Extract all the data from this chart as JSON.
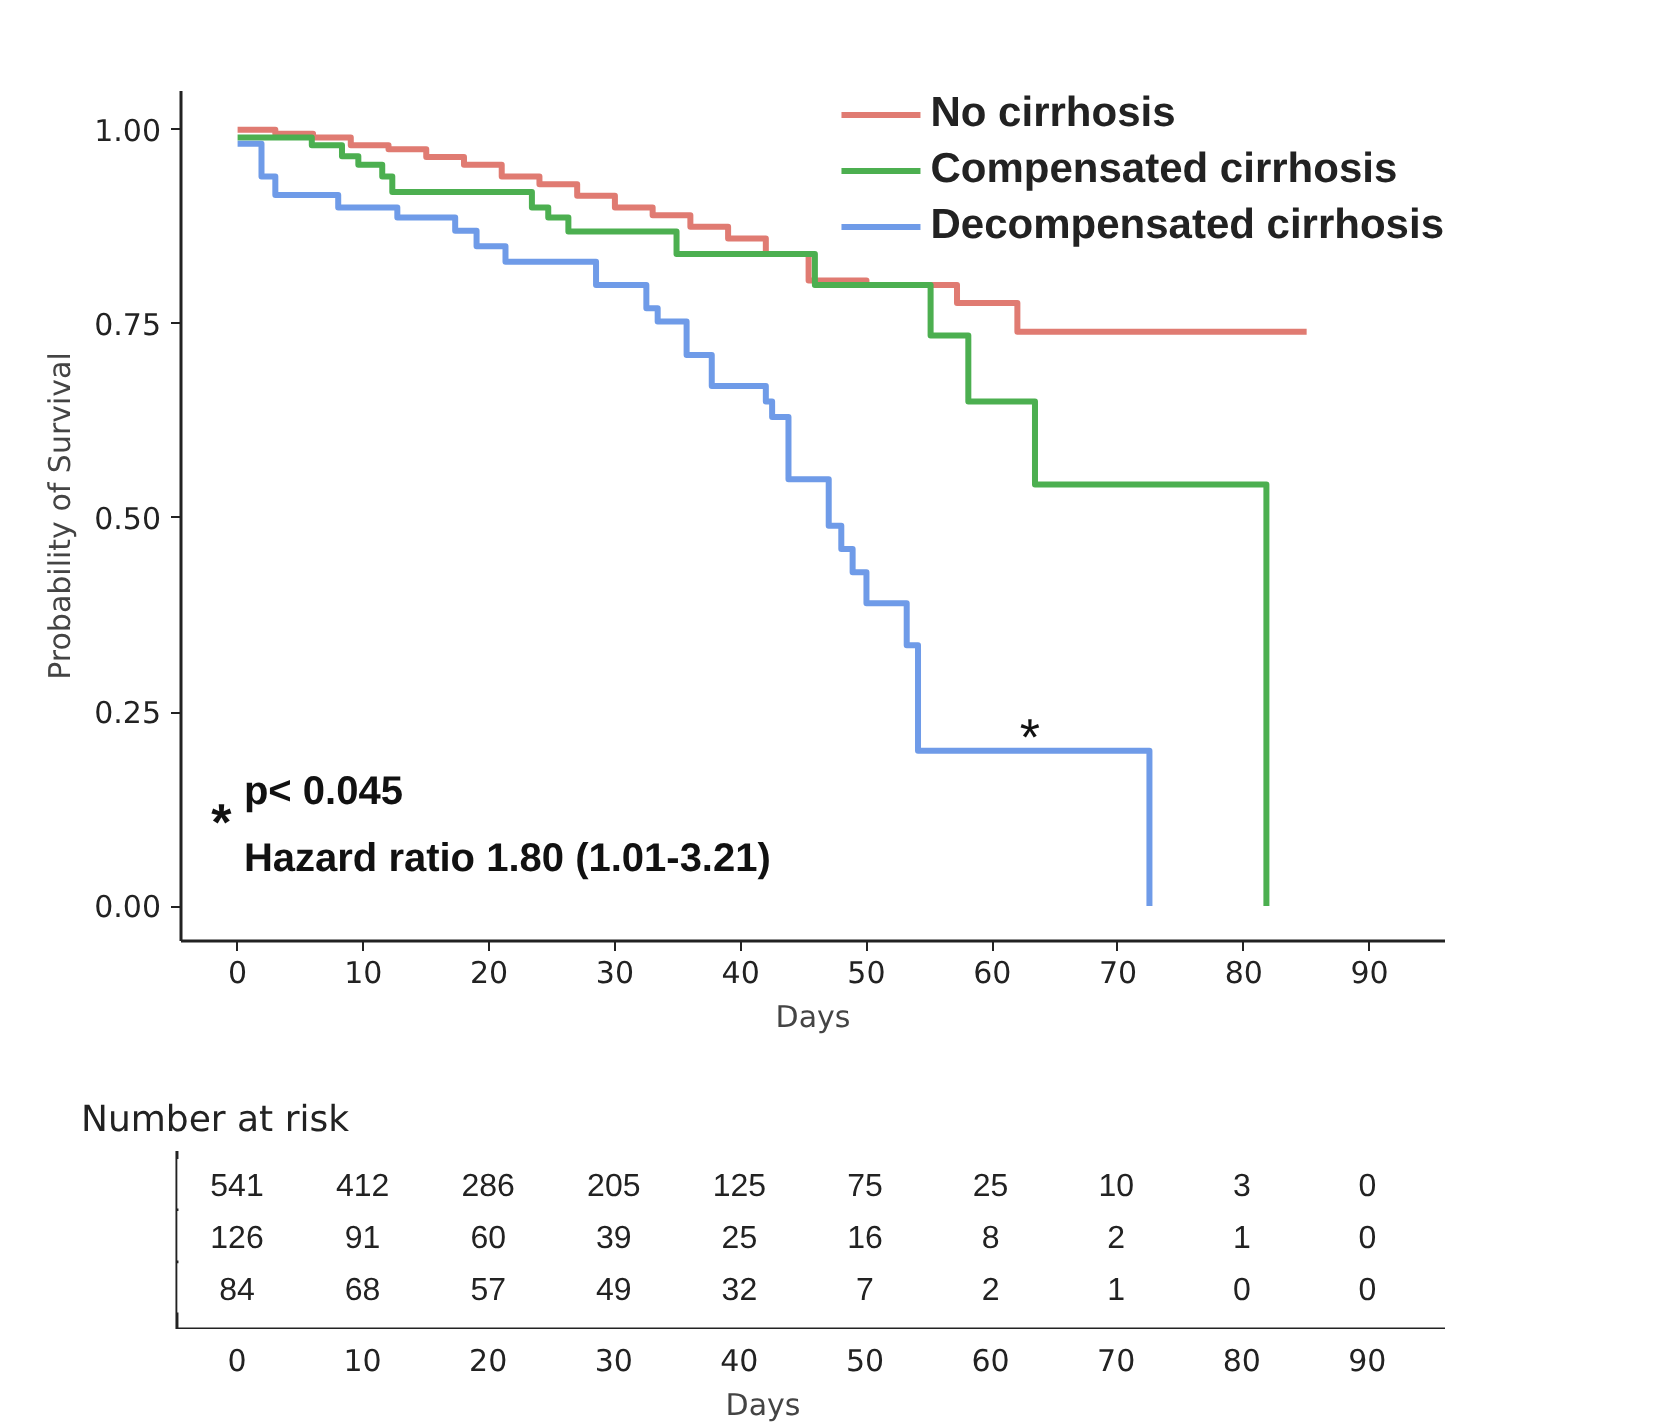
{
  "chart_data": [
    {
      "type": "step",
      "xlabel": "Days",
      "ylabel": "Probability of Survival",
      "xlim": [
        -4.5,
        96
      ],
      "ylim": [
        -0.045,
        1.05
      ],
      "xticks": [
        0,
        10,
        20,
        30,
        40,
        50,
        60,
        70,
        80,
        90
      ],
      "yticks": [
        {
          "value": 0,
          "label": "0.00"
        },
        {
          "value": 0.25,
          "label": "0.25"
        },
        {
          "value": 0.5,
          "label": "0.50"
        },
        {
          "value": 0.75,
          "label": "0.75"
        },
        {
          "value": 1,
          "label": "1.00"
        }
      ],
      "legend": "top right",
      "series": [
        {
          "name": "No cirrhosis",
          "color": "#e07b72",
          "x": [
            0,
            3,
            6,
            9,
            12,
            15,
            18,
            21,
            24,
            27,
            30,
            33,
            36,
            39,
            42,
            45.4,
            50,
            57.2,
            62,
            85
          ],
          "values": [
            1.0,
            0.995,
            0.99,
            0.98,
            0.975,
            0.965,
            0.955,
            0.94,
            0.93,
            0.915,
            0.9,
            0.89,
            0.875,
            0.86,
            0.84,
            0.806,
            0.8,
            0.777,
            0.74,
            0.74
          ]
        },
        {
          "name": "Compensated cirrhosis",
          "color": "#4caf50",
          "x": [
            0,
            5.9,
            8.3,
            9.6,
            11.5,
            12.3,
            23.4,
            24.7,
            26.3,
            34.9,
            45.9,
            55.1,
            58.1,
            63.4,
            81.8,
            81.8
          ],
          "values": [
            0.99,
            0.98,
            0.966,
            0.955,
            0.94,
            0.92,
            0.9,
            0.887,
            0.869,
            0.84,
            0.8,
            0.735,
            0.65,
            0.543,
            0.543,
            0
          ]
        },
        {
          "name": "Decompensated cirrhosis",
          "color": "#6f9be8",
          "x": [
            0,
            1.9,
            3,
            8,
            12.7,
            17.3,
            19,
            21.3,
            28.5,
            32.5,
            33.4,
            35.7,
            37.7,
            42,
            42.5,
            43.8,
            47,
            48,
            48.9,
            50,
            53.2,
            54.1,
            72.5,
            72.5
          ],
          "values": [
            0.982,
            0.94,
            0.916,
            0.9,
            0.887,
            0.87,
            0.85,
            0.83,
            0.8,
            0.77,
            0.753,
            0.71,
            0.67,
            0.65,
            0.63,
            0.55,
            0.49,
            0.46,
            0.43,
            0.39,
            0.336,
            0.2,
            0.2,
            0
          ]
        }
      ],
      "annotations": [
        {
          "text": "*",
          "x": 63,
          "y": 0.2
        },
        "*",
        "p< 0.045",
        "Hazard ratio 1.80 (1.01-3.21)"
      ]
    },
    {
      "type": "heatmap",
      "title": "Number at risk",
      "xlabel": "Days",
      "data_labels": true,
      "categories": [
        "0",
        "10",
        "20",
        "30",
        "40",
        "50",
        "60",
        "70",
        "80",
        "90"
      ],
      "y_categories": [
        null,
        null,
        null
      ],
      "cells": [
        [
          541,
          412,
          286,
          205,
          125,
          75,
          25,
          10,
          3,
          0
        ],
        [
          126,
          91,
          60,
          39,
          25,
          16,
          8,
          2,
          1,
          0
        ],
        [
          84,
          68,
          57,
          49,
          32,
          7,
          2,
          1,
          0,
          0
        ]
      ]
    }
  ]
}
